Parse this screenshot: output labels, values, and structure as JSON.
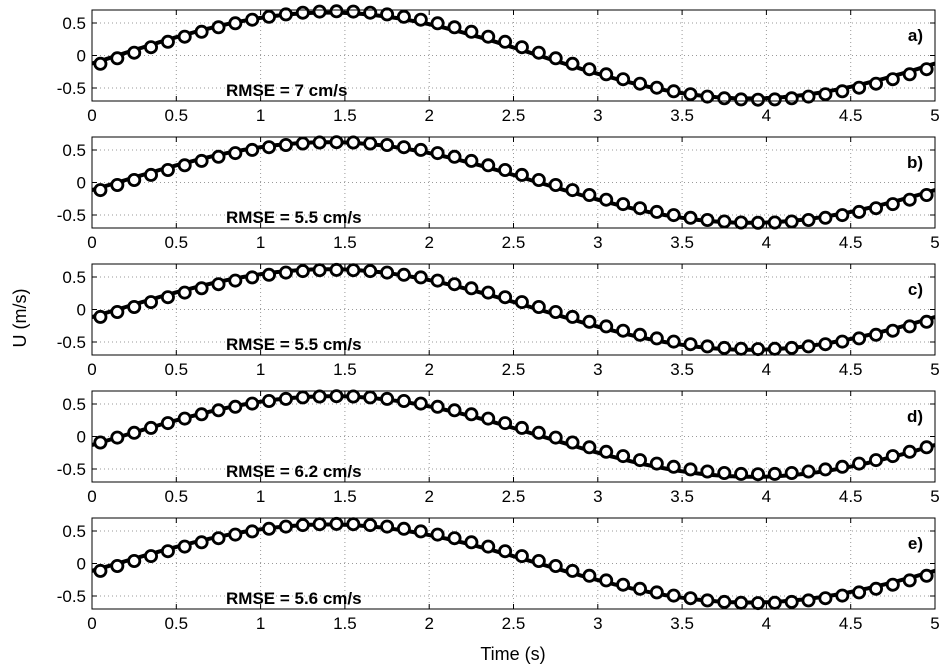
{
  "figure": {
    "ylabel": "U (m/s)",
    "xlabel": "Time (s)"
  },
  "chart_data": [
    {
      "type": "line",
      "panel_label": "a)",
      "annotation": "RMSE = 7 cm/s",
      "xlim": [
        0,
        5
      ],
      "ylim": [
        -0.7,
        0.7
      ],
      "xticks": [
        "0",
        "0.5",
        "1",
        "1.5",
        "2",
        "2.5",
        "3",
        "3.5",
        "4",
        "4.5",
        "5"
      ],
      "yticks": [
        "0.5",
        "0",
        "-0.5"
      ],
      "grid": true,
      "model": {
        "amplitude": 0.66,
        "period": 5.0,
        "phase_peak": 1.4
      },
      "observed": {
        "amplitude": 0.68,
        "period": 5.0,
        "phase_peak": 1.45,
        "offset": 0.0,
        "t_start": 0.05,
        "dt": 0.1,
        "count": 50
      }
    },
    {
      "type": "line",
      "panel_label": "b)",
      "annotation": "RMSE = 5.5 cm/s",
      "xlim": [
        0,
        5
      ],
      "ylim": [
        -0.7,
        0.7
      ],
      "xticks": [
        "0",
        "0.5",
        "1",
        "1.5",
        "2",
        "2.5",
        "3",
        "3.5",
        "4",
        "4.5",
        "5"
      ],
      "yticks": [
        "0.5",
        "0",
        "-0.5"
      ],
      "grid": true,
      "model": {
        "amplitude": 0.62,
        "period": 5.0,
        "phase_peak": 1.4
      },
      "observed": {
        "amplitude": 0.62,
        "period": 5.0,
        "phase_peak": 1.45,
        "offset": 0.0,
        "t_start": 0.05,
        "dt": 0.1,
        "count": 50
      }
    },
    {
      "type": "line",
      "panel_label": "c)",
      "annotation": "RMSE = 5.5 cm/s",
      "xlim": [
        0,
        5
      ],
      "ylim": [
        -0.7,
        0.7
      ],
      "xticks": [
        "0",
        "0.5",
        "1",
        "1.5",
        "2",
        "2.5",
        "3",
        "3.5",
        "4",
        "4.5",
        "5"
      ],
      "yticks": [
        "0.5",
        "0",
        "-0.5"
      ],
      "grid": true,
      "model": {
        "amplitude": 0.62,
        "period": 5.0,
        "phase_peak": 1.4
      },
      "observed": {
        "amplitude": 0.61,
        "period": 5.0,
        "phase_peak": 1.45,
        "offset": 0.0,
        "t_start": 0.05,
        "dt": 0.1,
        "count": 50
      }
    },
    {
      "type": "line",
      "panel_label": "d)",
      "annotation": "RMSE = 6.2 cm/s",
      "xlim": [
        0,
        5
      ],
      "ylim": [
        -0.7,
        0.7
      ],
      "xticks": [
        "0",
        "0.5",
        "1",
        "1.5",
        "2",
        "2.5",
        "3",
        "3.5",
        "4",
        "4.5",
        "5"
      ],
      "yticks": [
        "0.5",
        "0",
        "-0.5"
      ],
      "grid": true,
      "model": {
        "amplitude": 0.62,
        "period": 5.0,
        "phase_peak": 1.42
      },
      "observed": {
        "amplitude": 0.6,
        "period": 5.0,
        "phase_peak": 1.45,
        "offset": 0.02,
        "t_start": 0.05,
        "dt": 0.1,
        "count": 50
      }
    },
    {
      "type": "line",
      "panel_label": "e)",
      "annotation": "RMSE = 5.6 cm/s",
      "xlim": [
        0,
        5
      ],
      "ylim": [
        -0.7,
        0.7
      ],
      "xticks": [
        "0",
        "0.5",
        "1",
        "1.5",
        "2",
        "2.5",
        "3",
        "3.5",
        "4",
        "4.5",
        "5"
      ],
      "yticks": [
        "0.5",
        "0",
        "-0.5"
      ],
      "grid": true,
      "model": {
        "amplitude": 0.6,
        "period": 5.0,
        "phase_peak": 1.4
      },
      "observed": {
        "amplitude": 0.61,
        "period": 5.0,
        "phase_peak": 1.45,
        "offset": 0.0,
        "t_start": 0.05,
        "dt": 0.1,
        "count": 50
      }
    }
  ]
}
